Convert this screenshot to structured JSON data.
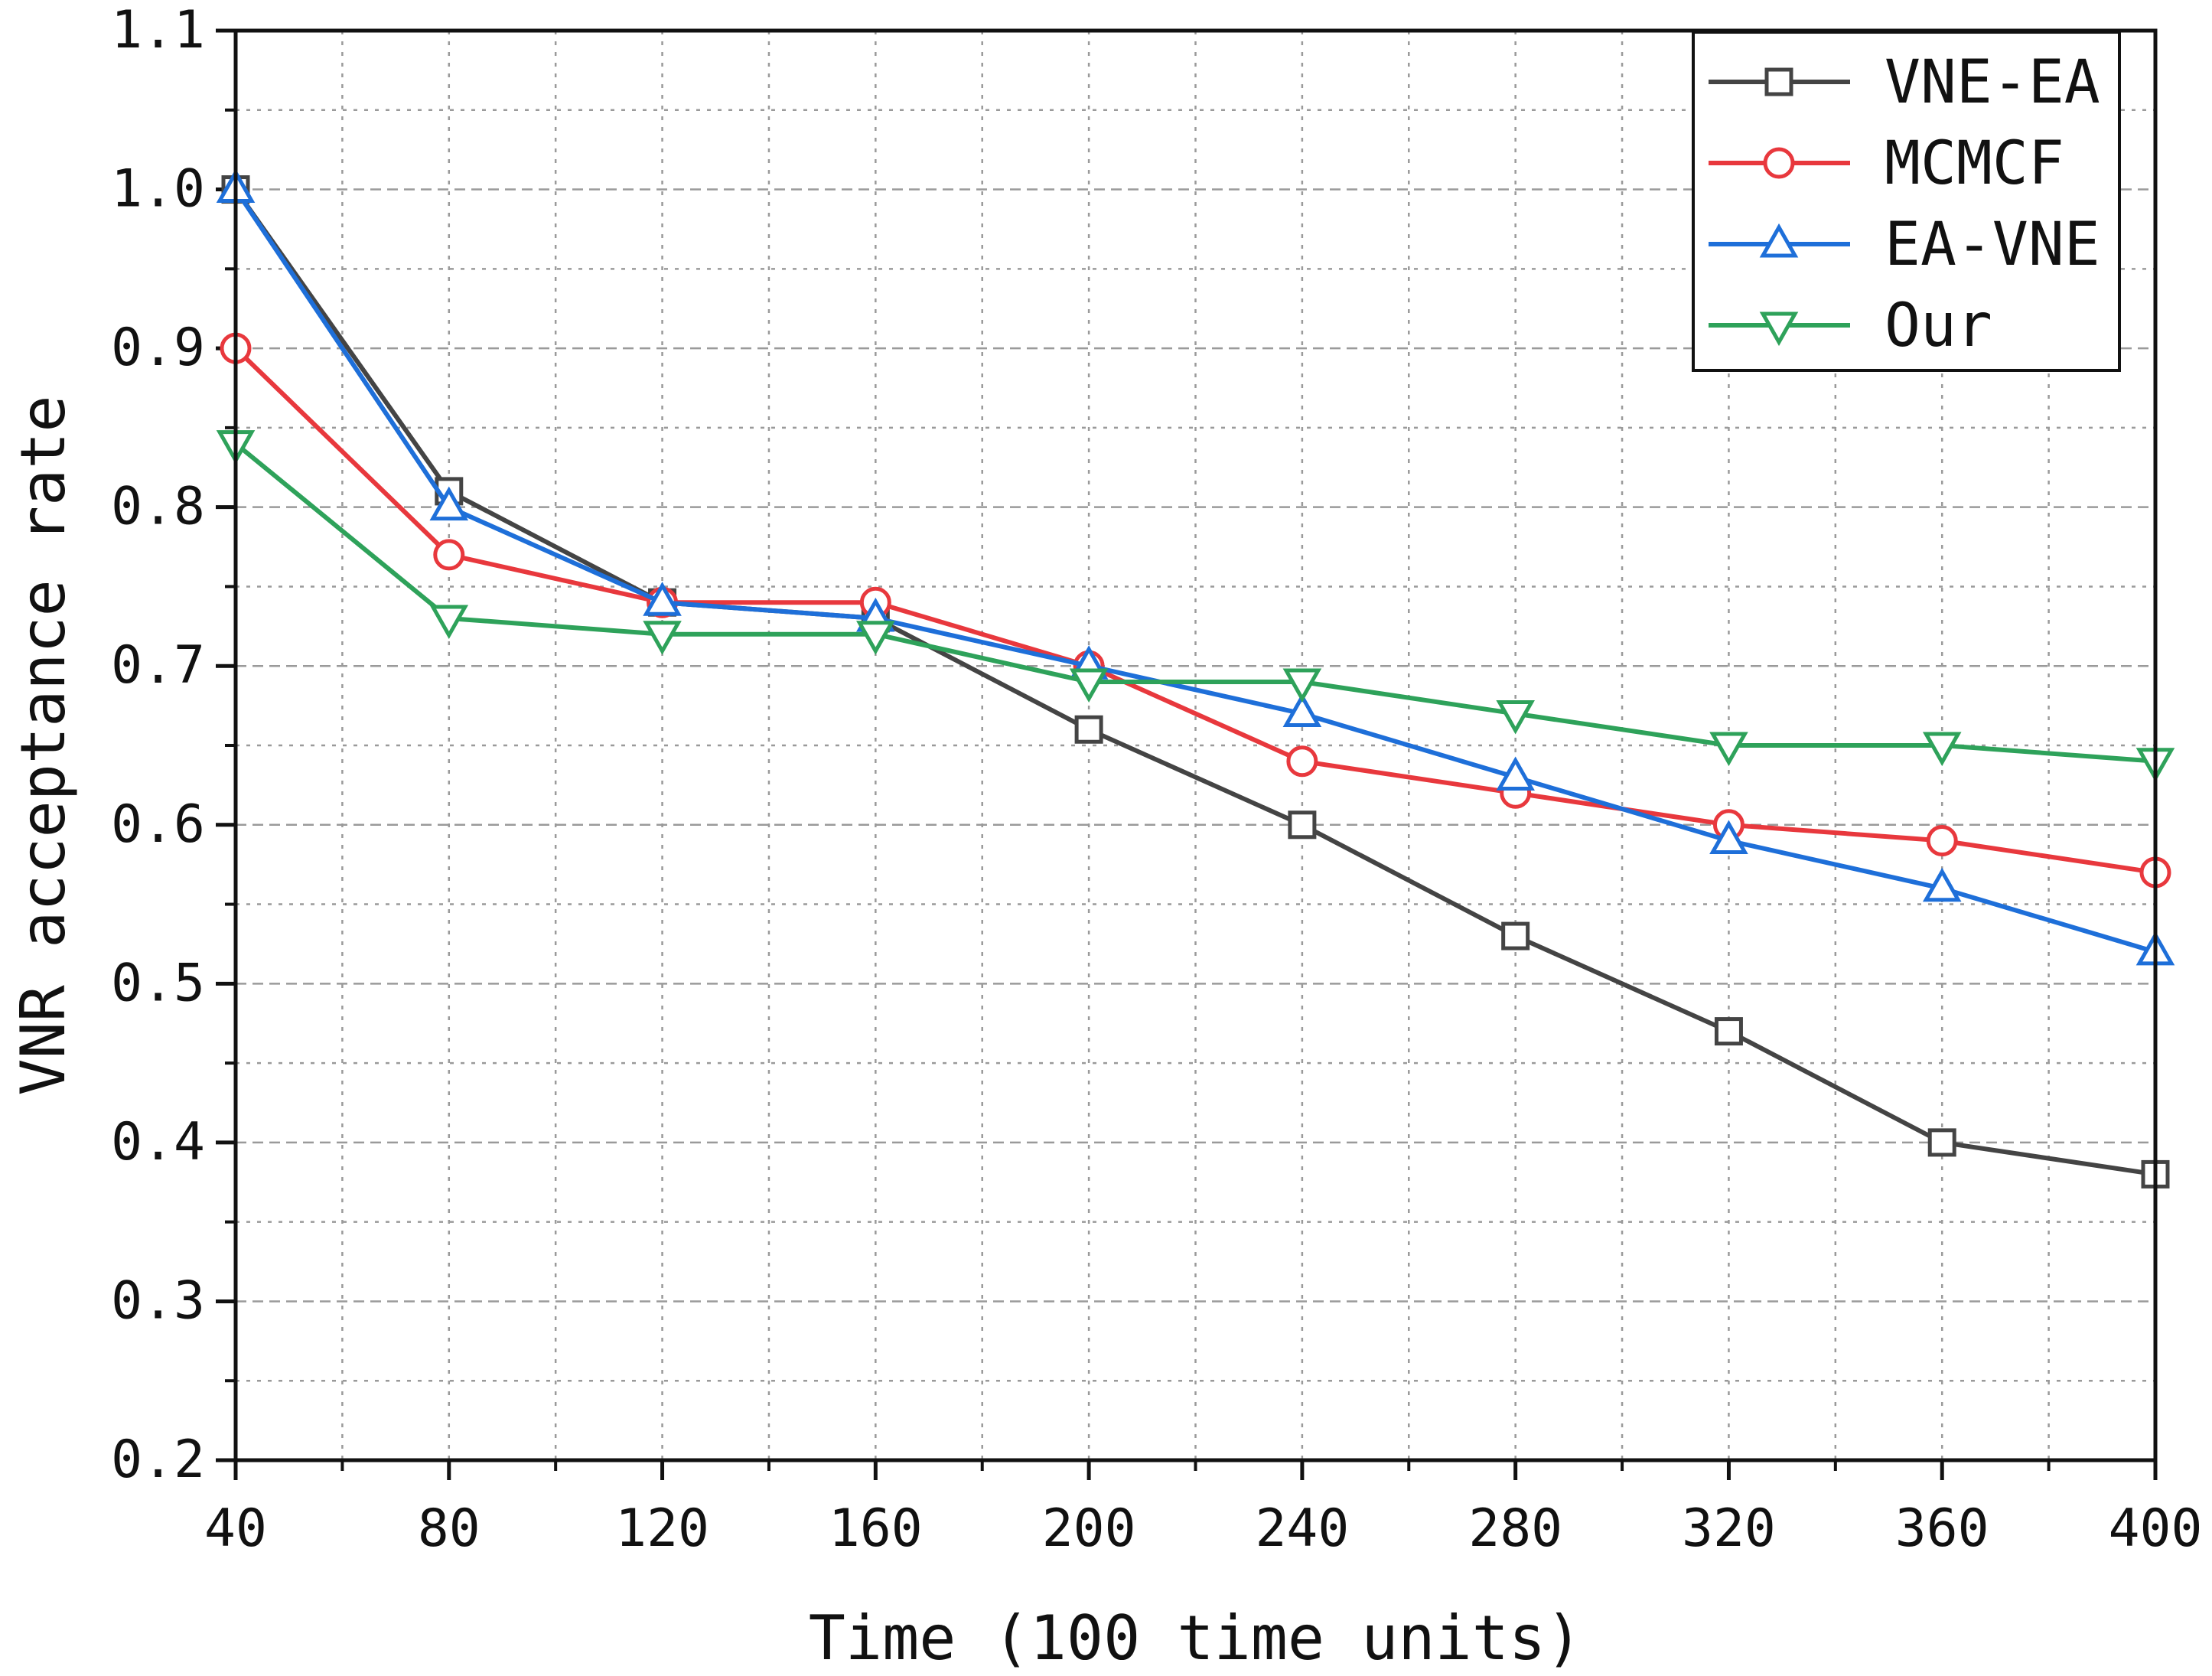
{
  "chart_data": {
    "type": "line",
    "title": "",
    "xlabel": "Time (100 time units)",
    "ylabel": "VNR acceptance rate",
    "x": [
      40,
      80,
      120,
      160,
      200,
      240,
      280,
      320,
      360,
      400
    ],
    "xlim": [
      40,
      400
    ],
    "ylim": [
      0.2,
      1.1
    ],
    "xticks": [
      "40",
      "80",
      "120",
      "160",
      "200",
      "240",
      "280",
      "320",
      "360",
      "400"
    ],
    "yticks": [
      "0.2",
      "0.3",
      "0.4",
      "0.5",
      "0.6",
      "0.7",
      "0.8",
      "0.9",
      "1.0",
      "1.1"
    ],
    "grid": true,
    "legend_position": "top-right",
    "series": [
      {
        "name": "VNE-EA",
        "color": "#444444",
        "marker": "square",
        "values": [
          1.0,
          0.81,
          0.74,
          0.73,
          0.66,
          0.6,
          0.53,
          0.47,
          0.4,
          0.38
        ]
      },
      {
        "name": "MCMCF",
        "color": "#e8383d",
        "marker": "circle",
        "values": [
          0.9,
          0.77,
          0.74,
          0.74,
          0.7,
          0.64,
          0.62,
          0.6,
          0.59,
          0.57
        ]
      },
      {
        "name": "EA-VNE",
        "color": "#1e6fd9",
        "marker": "triangle-up",
        "values": [
          1.0,
          0.8,
          0.74,
          0.73,
          0.7,
          0.67,
          0.63,
          0.59,
          0.56,
          0.52
        ]
      },
      {
        "name": "Our",
        "color": "#2ea25a",
        "marker": "triangle-down",
        "values": [
          0.84,
          0.73,
          0.72,
          0.72,
          0.69,
          0.69,
          0.67,
          0.65,
          0.65,
          0.64
        ]
      }
    ]
  }
}
